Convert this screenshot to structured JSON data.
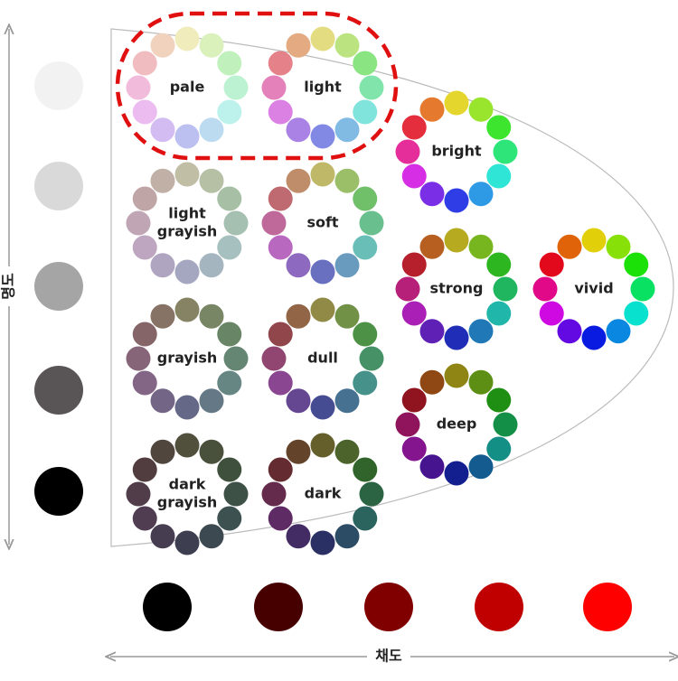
{
  "axes": {
    "vertical": "명도",
    "horizontal": "채도"
  },
  "tones": [
    {
      "label": [
        "pale"
      ]
    },
    {
      "label": [
        "light"
      ]
    },
    {
      "label": [
        "bright"
      ]
    },
    {
      "label": [
        "light",
        "grayish"
      ]
    },
    {
      "label": [
        "soft"
      ]
    },
    {
      "label": [
        "strong"
      ]
    },
    {
      "label": [
        "vivid"
      ]
    },
    {
      "label": [
        "grayish"
      ]
    },
    {
      "label": [
        "dull"
      ]
    },
    {
      "label": [
        "deep"
      ]
    },
    {
      "label": [
        "dark",
        "grayish"
      ]
    },
    {
      "label": [
        "dark"
      ]
    }
  ]
}
